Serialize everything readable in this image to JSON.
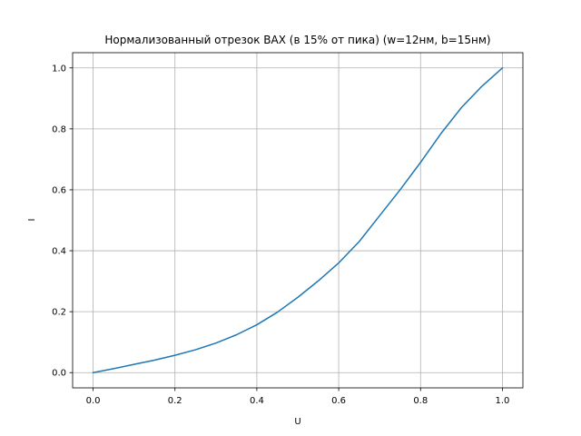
{
  "chart_data": {
    "type": "line",
    "title": "Нормализованный отрезок ВАХ (в 15% от пика) (w=12нм, b=15нм)",
    "xlabel": "U",
    "ylabel": "I",
    "xlim": [
      -0.05,
      1.05
    ],
    "ylim": [
      -0.05,
      1.05
    ],
    "xticks": [
      0.0,
      0.2,
      0.4,
      0.6,
      0.8,
      1.0
    ],
    "yticks": [
      0.0,
      0.2,
      0.4,
      0.6,
      0.8,
      1.0
    ],
    "xtick_labels": [
      "0.0",
      "0.2",
      "0.4",
      "0.6",
      "0.8",
      "1.0"
    ],
    "ytick_labels": [
      "0.0",
      "0.2",
      "0.4",
      "0.6",
      "0.8",
      "1.0"
    ],
    "grid": true,
    "line_color": "#1f77b4",
    "series": [
      {
        "x": [
          0.0,
          0.05,
          0.1,
          0.15,
          0.2,
          0.25,
          0.3,
          0.35,
          0.4,
          0.45,
          0.5,
          0.55,
          0.6,
          0.65,
          0.7,
          0.75,
          0.8,
          0.85,
          0.9,
          0.95,
          1.0
        ],
        "y": [
          0.0,
          0.013,
          0.027,
          0.041,
          0.057,
          0.075,
          0.097,
          0.124,
          0.157,
          0.198,
          0.247,
          0.301,
          0.36,
          0.43,
          0.515,
          0.6,
          0.69,
          0.785,
          0.87,
          0.94,
          1.0
        ]
      }
    ]
  }
}
